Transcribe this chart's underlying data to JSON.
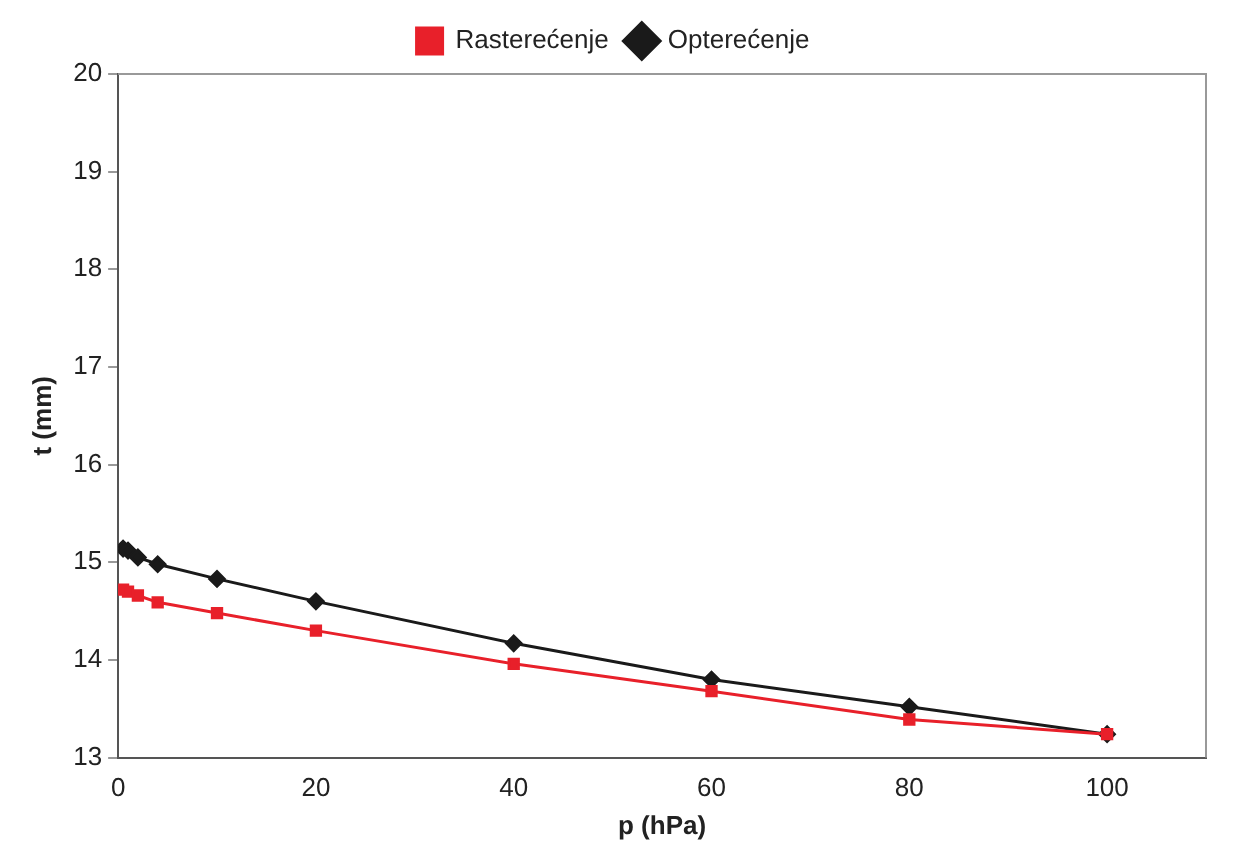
{
  "chart_data": {
    "type": "line",
    "xlabel": "p (hPa)",
    "ylabel": "t (mm)",
    "x": [
      0.5,
      1,
      2,
      4,
      10,
      20,
      40,
      60,
      80,
      100
    ],
    "series": [
      {
        "name": "Opterećenje",
        "color": "#1a1a1a",
        "marker": "diamond",
        "values": [
          15.14,
          15.12,
          15.05,
          14.98,
          14.83,
          14.6,
          14.17,
          13.8,
          13.52,
          13.24
        ]
      },
      {
        "name": "Rasterećenje",
        "color": "#e8202a",
        "marker": "square",
        "values": [
          14.72,
          14.7,
          14.66,
          14.59,
          14.48,
          14.3,
          13.96,
          13.68,
          13.39,
          13.24
        ]
      }
    ],
    "xlim": [
      0,
      110
    ],
    "xticks": [
      0,
      20,
      40,
      60,
      80,
      100
    ],
    "ylim": [
      13,
      20
    ],
    "yticks": [
      13,
      14,
      15,
      16,
      17,
      18,
      19,
      20
    ],
    "grid": false,
    "legend": "top"
  }
}
